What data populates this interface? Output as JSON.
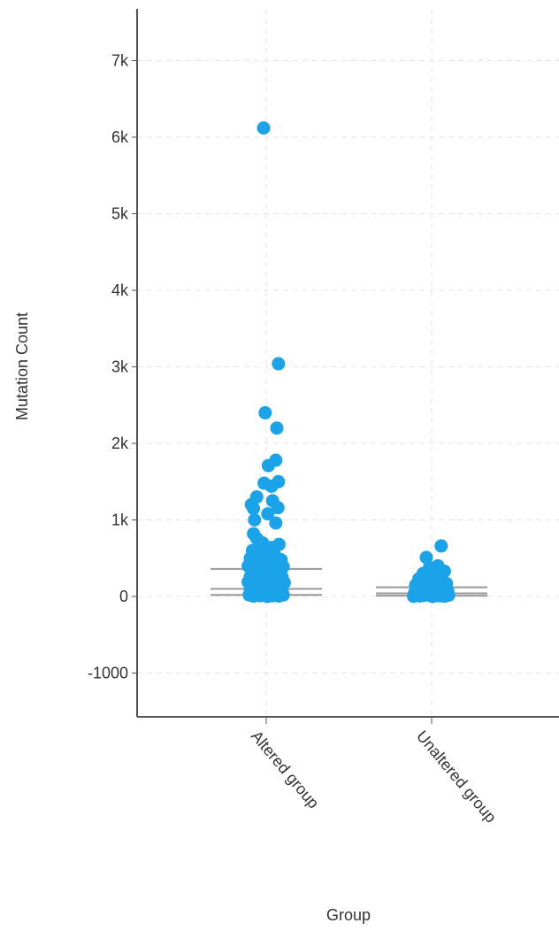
{
  "chart_data": {
    "type": "scatter",
    "subtype": "strip-plot with box summary",
    "xlabel": "Group",
    "ylabel": "Mutation Count",
    "ylim": [
      -1500,
      7600
    ],
    "yticks": [
      -1000,
      0,
      1000,
      2000,
      3000,
      4000,
      5000,
      6000,
      7000
    ],
    "ytick_labels": [
      "-1000",
      "0",
      "1k",
      "2k",
      "3k",
      "4k",
      "5k",
      "6k",
      "7k"
    ],
    "categories": [
      "Altered group",
      "Unaltered group"
    ],
    "grid": true,
    "point_color": "#1aa3e8",
    "box_color": "#999999",
    "series": [
      {
        "category": "Altered group",
        "box": {
          "q1": 20,
          "median": 100,
          "q3": 360
        },
        "points": [
          {
            "j": -0.05,
            "y": 6120
          },
          {
            "j": 0.23,
            "y": 3040
          },
          {
            "j": -0.02,
            "y": 2400
          },
          {
            "j": 0.2,
            "y": 2200
          },
          {
            "j": 0.18,
            "y": 1780
          },
          {
            "j": 0.04,
            "y": 1710
          },
          {
            "j": 0.23,
            "y": 1500
          },
          {
            "j": -0.04,
            "y": 1480
          },
          {
            "j": 0.1,
            "y": 1440
          },
          {
            "j": -0.18,
            "y": 1300
          },
          {
            "j": 0.12,
            "y": 1250
          },
          {
            "j": -0.28,
            "y": 1200
          },
          {
            "j": -0.24,
            "y": 1150
          },
          {
            "j": 0.22,
            "y": 1160
          },
          {
            "j": 0.03,
            "y": 1080
          },
          {
            "j": -0.22,
            "y": 1000
          },
          {
            "j": 0.18,
            "y": 960
          },
          {
            "j": -0.24,
            "y": 820
          },
          {
            "j": -0.18,
            "y": 760
          },
          {
            "j": 0.24,
            "y": 680
          },
          {
            "j": -0.07,
            "y": 700
          },
          {
            "j": 0.1,
            "y": 640
          },
          {
            "j": -0.26,
            "y": 600
          },
          {
            "j": 0.02,
            "y": 580
          },
          {
            "j": -0.14,
            "y": 560
          },
          {
            "j": 0.16,
            "y": 540
          },
          {
            "j": -0.3,
            "y": 500
          },
          {
            "j": 0.28,
            "y": 480
          },
          {
            "j": -0.08,
            "y": 470
          },
          {
            "j": 0.06,
            "y": 450
          },
          {
            "j": -0.2,
            "y": 430
          },
          {
            "j": 0.2,
            "y": 420
          },
          {
            "j": -0.34,
            "y": 400
          },
          {
            "j": 0.32,
            "y": 390
          },
          {
            "j": -0.12,
            "y": 380
          },
          {
            "j": 0.12,
            "y": 370
          },
          {
            "j": -0.02,
            "y": 350
          },
          {
            "j": -0.26,
            "y": 340
          },
          {
            "j": 0.26,
            "y": 330
          },
          {
            "j": -0.16,
            "y": 310
          },
          {
            "j": 0.16,
            "y": 300
          },
          {
            "j": -0.06,
            "y": 290
          },
          {
            "j": 0.06,
            "y": 280
          },
          {
            "j": -0.3,
            "y": 260
          },
          {
            "j": 0.3,
            "y": 250
          },
          {
            "j": -0.22,
            "y": 240
          },
          {
            "j": 0.22,
            "y": 230
          },
          {
            "j": -0.1,
            "y": 220
          },
          {
            "j": 0.1,
            "y": 210
          },
          {
            "j": 0.0,
            "y": 200
          },
          {
            "j": -0.34,
            "y": 190
          },
          {
            "j": 0.34,
            "y": 180
          },
          {
            "j": -0.18,
            "y": 170
          },
          {
            "j": 0.18,
            "y": 160
          },
          {
            "j": -0.04,
            "y": 150
          },
          {
            "j": 0.04,
            "y": 140
          },
          {
            "j": -0.26,
            "y": 130
          },
          {
            "j": 0.26,
            "y": 120
          },
          {
            "j": -0.14,
            "y": 110
          },
          {
            "j": 0.14,
            "y": 100
          },
          {
            "j": -0.3,
            "y": 90
          },
          {
            "j": 0.3,
            "y": 80
          },
          {
            "j": -0.08,
            "y": 70
          },
          {
            "j": 0.08,
            "y": 60
          },
          {
            "j": -0.2,
            "y": 50
          },
          {
            "j": 0.2,
            "y": 40
          },
          {
            "j": 0.0,
            "y": 30
          },
          {
            "j": -0.32,
            "y": 20
          },
          {
            "j": 0.32,
            "y": 20
          },
          {
            "j": -0.12,
            "y": 10
          },
          {
            "j": 0.12,
            "y": 10
          },
          {
            "j": -0.24,
            "y": 5
          },
          {
            "j": 0.24,
            "y": 5
          },
          {
            "j": 0.02,
            "y": 0
          }
        ]
      },
      {
        "category": "Unaltered group",
        "box": {
          "q1": 10,
          "median": 40,
          "q3": 120
        },
        "points": [
          {
            "j": 0.18,
            "y": 660
          },
          {
            "j": -0.1,
            "y": 510
          },
          {
            "j": 0.12,
            "y": 400
          },
          {
            "j": -0.04,
            "y": 380
          },
          {
            "j": 0.24,
            "y": 330
          },
          {
            "j": -0.16,
            "y": 300
          },
          {
            "j": 0.04,
            "y": 270
          },
          {
            "j": -0.24,
            "y": 230
          },
          {
            "j": 0.18,
            "y": 210
          },
          {
            "j": -0.08,
            "y": 190
          },
          {
            "j": 0.28,
            "y": 170
          },
          {
            "j": -0.3,
            "y": 150
          },
          {
            "j": 0.1,
            "y": 140
          },
          {
            "j": -0.18,
            "y": 120
          },
          {
            "j": 0.22,
            "y": 110
          },
          {
            "j": 0.0,
            "y": 100
          },
          {
            "j": -0.26,
            "y": 90
          },
          {
            "j": 0.3,
            "y": 80
          },
          {
            "j": -0.12,
            "y": 70
          },
          {
            "j": 0.14,
            "y": 60
          },
          {
            "j": -0.32,
            "y": 50
          },
          {
            "j": 0.06,
            "y": 45
          },
          {
            "j": -0.06,
            "y": 40
          },
          {
            "j": 0.26,
            "y": 35
          },
          {
            "j": -0.2,
            "y": 30
          },
          {
            "j": 0.2,
            "y": 25
          },
          {
            "j": -0.28,
            "y": 20
          },
          {
            "j": 0.32,
            "y": 18
          },
          {
            "j": -0.14,
            "y": 15
          },
          {
            "j": 0.08,
            "y": 12
          },
          {
            "j": -0.02,
            "y": 10
          },
          {
            "j": 0.16,
            "y": 8
          },
          {
            "j": -0.22,
            "y": 6
          },
          {
            "j": 0.24,
            "y": 4
          },
          {
            "j": -0.34,
            "y": 2
          },
          {
            "j": 0.02,
            "y": 0
          }
        ]
      }
    ]
  }
}
